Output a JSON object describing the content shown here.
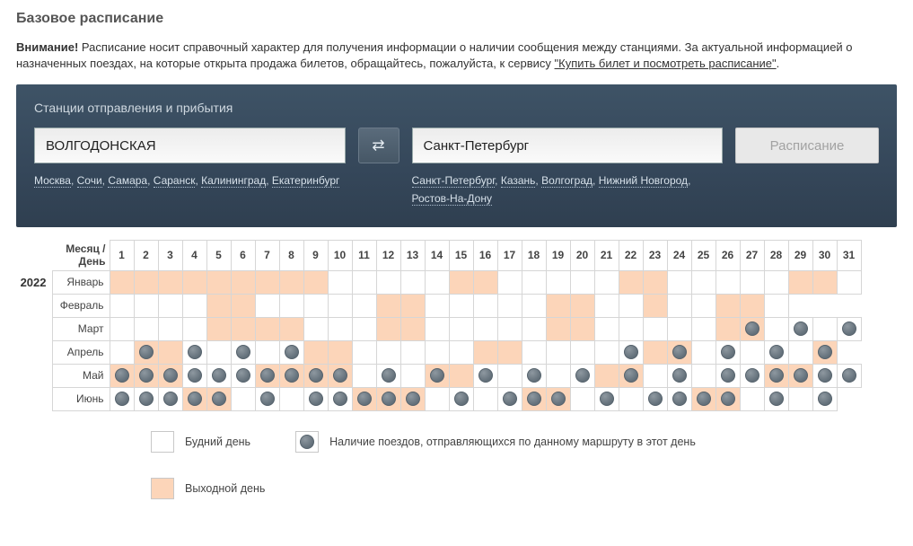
{
  "title": "Базовое расписание",
  "notice": {
    "label": "Внимание!",
    "text": " Расписание носит справочный характер для получения информации о наличии сообщения между станциями. За актуальной информацией о назначенных поездах, на которые открыта продажа билетов, обращайтесь, пожалуйста, к сервису ",
    "link": "\"Купить билет и посмотреть расписание\""
  },
  "panel": {
    "title": "Станции отправления и прибытия",
    "from_value": "ВОЛГОДОНСКАЯ",
    "to_value": "Санкт-Петербург",
    "schedule_btn": "Расписание",
    "from_links": [
      "Москва",
      "Сочи",
      "Самара",
      "Саранск",
      "Калининград",
      "Екатеринбург"
    ],
    "to_links": [
      "Санкт-Петербург",
      "Казань",
      "Волгоград",
      "Нижний Новгород",
      "Ростов-На-Дону"
    ]
  },
  "schedule": {
    "corner_label": "Месяц / День",
    "year": "2022",
    "days": [
      1,
      2,
      3,
      4,
      5,
      6,
      7,
      8,
      9,
      10,
      11,
      12,
      13,
      14,
      15,
      16,
      17,
      18,
      19,
      20,
      21,
      22,
      23,
      24,
      25,
      26,
      27,
      28,
      29,
      30,
      31
    ],
    "months": [
      {
        "name": "Январь",
        "len": 31,
        "weekend": [
          1,
          2,
          3,
          4,
          5,
          6,
          7,
          8,
          9,
          15,
          16,
          22,
          23,
          29,
          30
        ],
        "train": []
      },
      {
        "name": "Февраль",
        "len": 28,
        "weekend": [
          5,
          6,
          12,
          13,
          19,
          20,
          23,
          26,
          27
        ],
        "train": []
      },
      {
        "name": "Март",
        "len": 31,
        "weekend": [
          5,
          6,
          7,
          8,
          12,
          13,
          19,
          20,
          26,
          27
        ],
        "train": [
          27,
          29,
          31
        ]
      },
      {
        "name": "Апрель",
        "len": 30,
        "weekend": [
          2,
          3,
          9,
          10,
          16,
          17,
          23,
          24,
          30
        ],
        "train": [
          2,
          4,
          6,
          8,
          22,
          24,
          26,
          28,
          30
        ]
      },
      {
        "name": "Май",
        "len": 31,
        "weekend": [
          1,
          2,
          3,
          7,
          8,
          9,
          10,
          14,
          15,
          21,
          22,
          28,
          29
        ],
        "train": [
          1,
          2,
          3,
          4,
          5,
          6,
          7,
          8,
          9,
          10,
          12,
          14,
          16,
          18,
          20,
          22,
          24,
          26,
          27,
          28,
          29,
          30,
          31
        ]
      },
      {
        "name": "Июнь",
        "len": 30,
        "weekend": [
          4,
          5,
          11,
          12,
          13,
          18,
          19,
          25,
          26
        ],
        "train": [
          1,
          2,
          3,
          4,
          5,
          7,
          9,
          10,
          11,
          12,
          13,
          15,
          17,
          18,
          19,
          21,
          23,
          24,
          25,
          26,
          28,
          30
        ]
      }
    ],
    "colors": {
      "weekend_bg": "#fcd5b9",
      "border": "#d6d6d6"
    }
  },
  "legend": {
    "weekday": "Будний день",
    "weekend": "Выходной день",
    "train": "Наличие поездов, отправляющихся по данному маршруту в этот день"
  }
}
